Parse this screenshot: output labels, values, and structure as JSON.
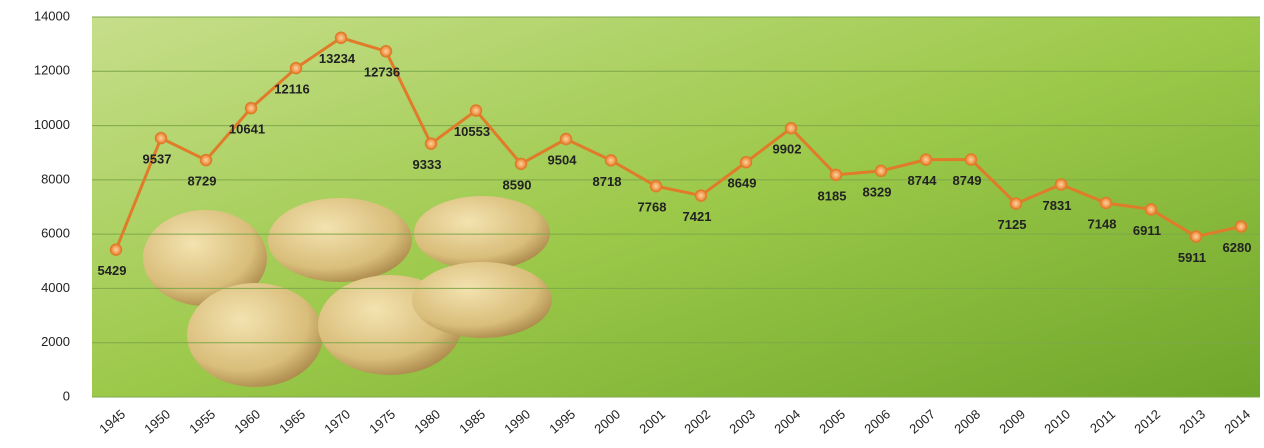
{
  "chart_data": {
    "type": "line",
    "categories": [
      "1945",
      "1950",
      "1955",
      "1960",
      "1965",
      "1970",
      "1975",
      "1980",
      "1985",
      "1990",
      "1995",
      "2000",
      "2001",
      "2002",
      "2003",
      "2004",
      "2005",
      "2006",
      "2007",
      "2008",
      "2009",
      "2010",
      "2011",
      "2012",
      "2013",
      "2014"
    ],
    "series": [
      {
        "name": "",
        "color": "#e07b2a",
        "values": [
          5429,
          9537,
          8729,
          10641,
          12116,
          13234,
          12736,
          9333,
          10553,
          8590,
          9504,
          8718,
          7768,
          7421,
          8649,
          9902,
          8185,
          8329,
          8744,
          8749,
          7125,
          7831,
          7148,
          6911,
          5911,
          6280
        ]
      }
    ],
    "ylim": [
      0,
      14000
    ],
    "yticks": [
      0,
      2000,
      4000,
      6000,
      8000,
      10000,
      12000,
      14000
    ],
    "grid": true
  }
}
